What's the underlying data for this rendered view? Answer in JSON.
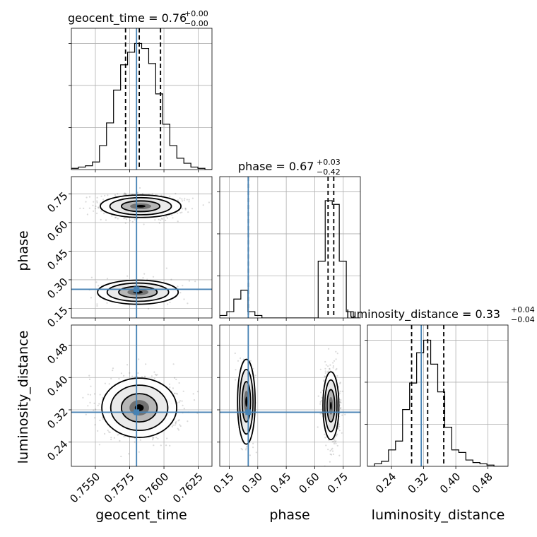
{
  "figure": {
    "grid": true
  },
  "titles": {
    "geocent_time": {
      "main": "geocent_time = 0.76",
      "sup": "+0.00",
      "sub": "−0.00"
    },
    "phase": {
      "main": "phase = 0.67",
      "sup": "+0.03",
      "sub": "−0.42"
    },
    "luminosity_distance": {
      "main": "luminosity_distance = 0.33",
      "sup": "+0.04",
      "sub": "−0.04"
    }
  },
  "axis_labels": {
    "geocent_time": "geocent_time",
    "phase": "phase",
    "luminosity_distance": "luminosity_distance"
  },
  "chart_data": {
    "type": "corner",
    "parameters": [
      "geocent_time",
      "phase",
      "luminosity_distance"
    ],
    "colors": {
      "truth": "#4682b4",
      "histogram": "#000000",
      "quantiles": "#000000"
    },
    "ranges": {
      "geocent_time": [
        0.75325,
        0.7635
      ],
      "phase": [
        0.1,
        0.84
      ],
      "luminosity_distance": [
        0.18,
        0.53
      ]
    },
    "ticks": {
      "geocent_time": [
        "0.7550",
        "0.7575",
        "0.7600",
        "0.7625"
      ],
      "phase": [
        "0.15",
        "0.30",
        "0.45",
        "0.60",
        "0.75"
      ],
      "luminosity_distance": [
        "0.24",
        "0.32",
        "0.40",
        "0.48"
      ]
    },
    "truths": {
      "geocent_time": 0.758,
      "phase": 0.25,
      "luminosity_distance": 0.314
    },
    "quantiles": {
      "geocent_time": [
        0.7572,
        0.7582,
        0.75975
      ],
      "phase": [
        0.25,
        0.67,
        0.7
      ],
      "luminosity_distance": [
        0.29,
        0.33,
        0.37
      ]
    },
    "histograms": {
      "geocent_time": {
        "edges": [
          0.75325,
          0.7537625,
          0.754275,
          0.7547875,
          0.7553,
          0.7558125,
          0.756325,
          0.7568375,
          0.75735,
          0.7578625,
          0.758375,
          0.7588875,
          0.7594,
          0.7599125,
          0.760425,
          0.7609375,
          0.76145,
          0.7619625,
          0.762475,
          0.7629875,
          0.7635
        ],
        "counts": [
          0.01,
          0.02,
          0.03,
          0.06,
          0.19,
          0.37,
          0.63,
          0.83,
          0.93,
          1.0,
          0.96,
          0.84,
          0.6,
          0.36,
          0.19,
          0.09,
          0.05,
          0.02,
          0.01,
          0.0
        ]
      },
      "phase": {
        "edges": [
          0.1,
          0.137,
          0.174,
          0.211,
          0.248,
          0.285,
          0.322,
          0.359,
          0.396,
          0.433,
          0.47,
          0.507,
          0.544,
          0.581,
          0.618,
          0.655,
          0.692,
          0.729,
          0.766,
          0.803,
          0.84
        ],
        "counts": [
          0.02,
          0.05,
          0.15,
          0.22,
          0.05,
          0.02,
          0.0,
          0.0,
          0.0,
          0.0,
          0.0,
          0.0,
          0.0,
          0.0,
          0.45,
          0.93,
          0.9,
          0.45,
          0.05,
          0.0
        ]
      },
      "luminosity_distance": {
        "edges": [
          0.18,
          0.1975,
          0.215,
          0.2325,
          0.25,
          0.2675,
          0.285,
          0.3025,
          0.32,
          0.3375,
          0.355,
          0.3725,
          0.39,
          0.4075,
          0.425,
          0.4425,
          0.46,
          0.4775,
          0.495,
          0.5125,
          0.53
        ],
        "counts": [
          0.0,
          0.02,
          0.04,
          0.13,
          0.2,
          0.45,
          0.66,
          0.9,
          1.0,
          0.81,
          0.59,
          0.31,
          0.13,
          0.11,
          0.05,
          0.03,
          0.02,
          0.01,
          0.0,
          0.0
        ]
      }
    },
    "density_modes": {
      "phase_vs_geocent_time": [
        {
          "x": 0.7583,
          "y": 0.685,
          "sx": 0.0014,
          "sy": 0.028,
          "weight": 0.75
        },
        {
          "x": 0.7581,
          "y": 0.235,
          "sx": 0.0014,
          "sy": 0.03,
          "weight": 0.25
        }
      ],
      "luminosity_distance_vs_geocent_time": [
        {
          "x": 0.7582,
          "y": 0.325,
          "sx": 0.0013,
          "sy": 0.035,
          "weight": 1.0
        }
      ],
      "luminosity_distance_vs_phase": [
        {
          "x": 0.685,
          "y": 0.33,
          "sx": 0.02,
          "sy": 0.04,
          "weight": 0.75
        },
        {
          "x": 0.24,
          "y": 0.34,
          "sx": 0.022,
          "sy": 0.05,
          "weight": 0.25
        }
      ]
    }
  }
}
